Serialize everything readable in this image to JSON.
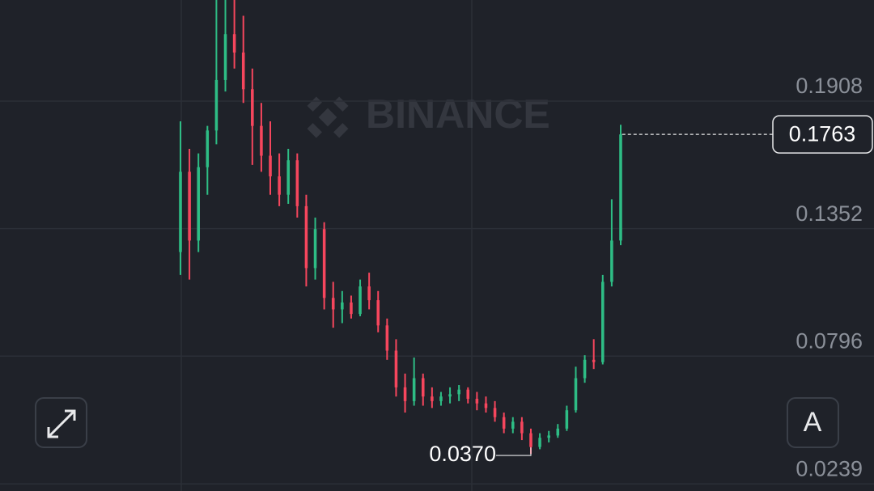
{
  "chart_data": {
    "type": "candlestick",
    "watermark": "BINANCE",
    "open": [
      0.125,
      0.16,
      0.13,
      0.162,
      0.178,
      0.2,
      0.22,
      0.212,
      0.196,
      0.18,
      0.167,
      0.158,
      0.15,
      0.165,
      0.145,
      0.118,
      0.135,
      0.105,
      0.1,
      0.103,
      0.098,
      0.11,
      0.104,
      0.093,
      0.082,
      0.066,
      0.06,
      0.07,
      0.062,
      0.06,
      0.062,
      0.063,
      0.065,
      0.061,
      0.059,
      0.057,
      0.053,
      0.048,
      0.051,
      0.046,
      0.04,
      0.044,
      0.045,
      0.048,
      0.056,
      0.07,
      0.078,
      0.077,
      0.112,
      0.13
    ],
    "high": [
      0.182,
      0.17,
      0.168,
      0.18,
      0.235,
      0.235,
      0.235,
      0.228,
      0.205,
      0.19,
      0.182,
      0.168,
      0.17,
      0.168,
      0.15,
      0.14,
      0.138,
      0.112,
      0.108,
      0.106,
      0.113,
      0.116,
      0.108,
      0.096,
      0.087,
      0.072,
      0.079,
      0.072,
      0.066,
      0.064,
      0.066,
      0.067,
      0.066,
      0.064,
      0.062,
      0.06,
      0.055,
      0.053,
      0.053,
      0.048,
      0.046,
      0.047,
      0.05,
      0.058,
      0.075,
      0.08,
      0.087,
      0.115,
      0.148,
      0.1805
    ],
    "low": [
      0.115,
      0.113,
      0.125,
      0.15,
      0.172,
      0.195,
      0.205,
      0.19,
      0.163,
      0.16,
      0.15,
      0.145,
      0.146,
      0.14,
      0.11,
      0.113,
      0.1,
      0.092,
      0.094,
      0.096,
      0.097,
      0.1,
      0.09,
      0.078,
      0.062,
      0.055,
      0.058,
      0.058,
      0.057,
      0.058,
      0.059,
      0.06,
      0.059,
      0.056,
      0.055,
      0.051,
      0.046,
      0.046,
      0.043,
      0.037,
      0.039,
      0.042,
      0.044,
      0.047,
      0.055,
      0.068,
      0.074,
      0.076,
      0.11,
      0.128
    ],
    "close": [
      0.16,
      0.13,
      0.162,
      0.178,
      0.2,
      0.22,
      0.212,
      0.196,
      0.18,
      0.167,
      0.158,
      0.15,
      0.165,
      0.145,
      0.118,
      0.135,
      0.105,
      0.1,
      0.103,
      0.098,
      0.11,
      0.104,
      0.093,
      0.082,
      0.066,
      0.06,
      0.07,
      0.062,
      0.06,
      0.062,
      0.063,
      0.065,
      0.061,
      0.059,
      0.057,
      0.053,
      0.048,
      0.051,
      0.046,
      0.04,
      0.044,
      0.045,
      0.048,
      0.056,
      0.07,
      0.078,
      0.077,
      0.112,
      0.13,
      0.1763
    ],
    "up_color": "#2ebd85",
    "down_color": "#f6465d",
    "ylim": [
      0.0208,
      0.2349
    ],
    "yticks": [
      0.1908,
      0.1352,
      0.0796,
      0.0239
    ],
    "grid": true,
    "last_price": 0.1763,
    "low_marker": {
      "value": 0.037,
      "label": "0.0370"
    },
    "auto_button": "A"
  }
}
